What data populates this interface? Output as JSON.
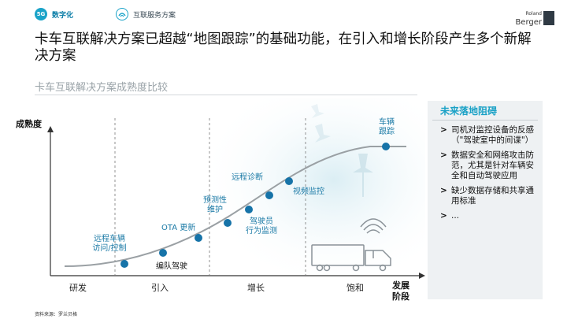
{
  "header": {
    "tag1_icon": "digital-badge-icon",
    "tag1_badge": "5G",
    "tag1_label": "数字化",
    "tag2_icon": "connected-badge-icon",
    "tag2_label": "互联服务方案"
  },
  "brand": {
    "line1": "Roland",
    "line2": "Berger"
  },
  "title": "卡车互联解决方案已超越“地图跟踪”的基础功能，在引入和增长阶段产生多个新解决方案",
  "subtitle": "卡车互联解决方案成熟度比较",
  "diagram": {
    "y_label": "成熟度",
    "stages": [
      "研发",
      "引入",
      "增长",
      "饱和"
    ],
    "end_label_1": "发展",
    "end_label_2": "阶段",
    "points": [
      {
        "l1": "远程车辆",
        "l2": "访问/控制"
      },
      {
        "l1": "编队驾驶",
        "l2": ""
      },
      {
        "l1": "OTA 更新",
        "l2": ""
      },
      {
        "l1": "预测性",
        "l2": "维护"
      },
      {
        "l1": "驾驶员",
        "l2": "行为监测"
      },
      {
        "l1": "远程诊断",
        "l2": ""
      },
      {
        "l1": "视频监控",
        "l2": ""
      },
      {
        "l1": "车辆",
        "l2": "跟踪"
      }
    ]
  },
  "sidebar": {
    "title": "未来落地阻碍",
    "bullet": ">",
    "items": [
      "司机对监控设备的反感（\"驾驶室中的间谍\"）",
      "数据安全和网络攻击防范，尤其是针对车辆安全和自动驾驶应用",
      "缺少数据存储和共享通用标准",
      "..."
    ]
  },
  "source": "资料来源：罗兰贝格",
  "colors": {
    "accent": "#19a1c6",
    "dot": "#1673a8",
    "curve": "#9aa0a4",
    "sidebar_bg": "#eef1f3"
  }
}
